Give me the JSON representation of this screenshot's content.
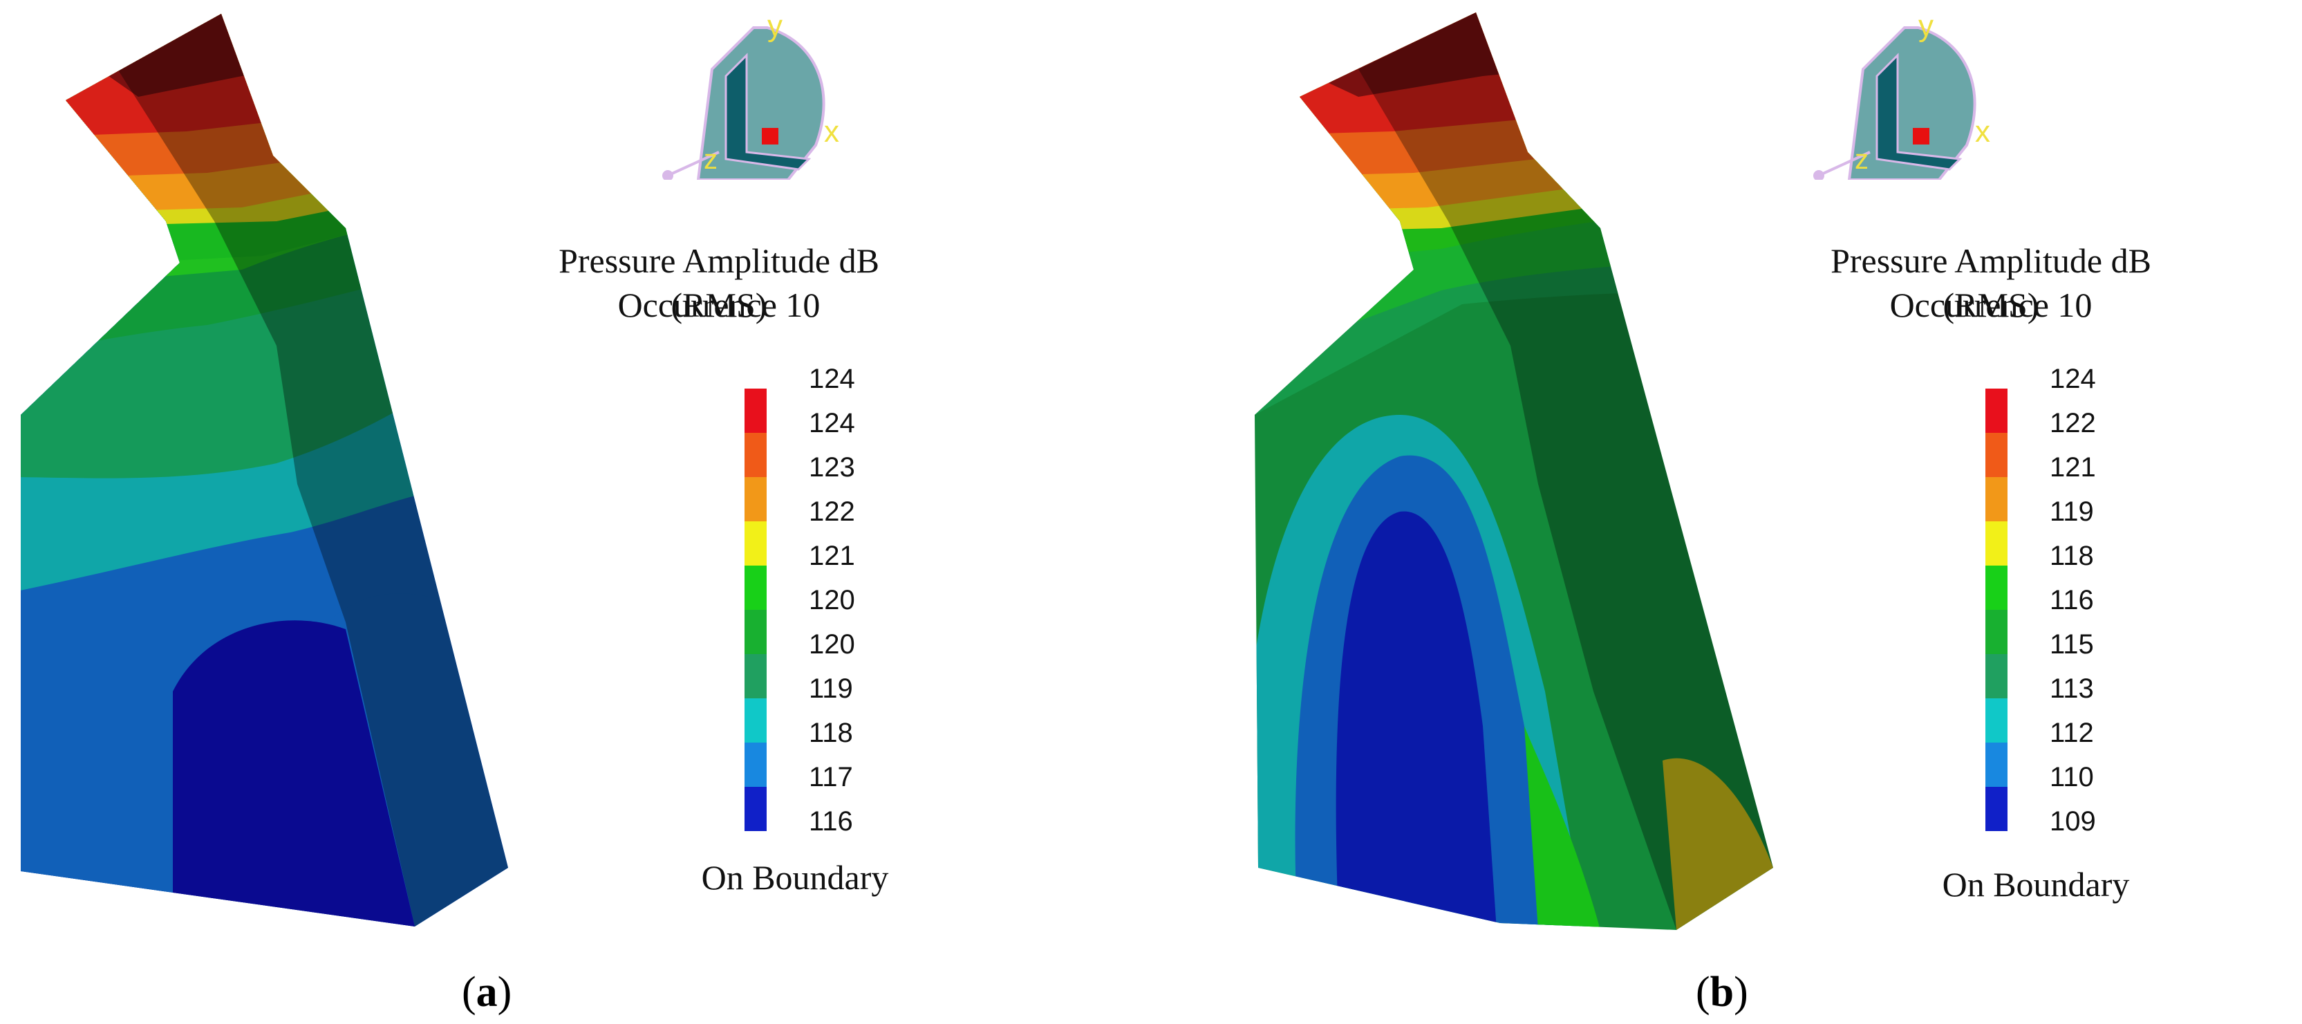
{
  "panels": [
    {
      "id": "a",
      "caption_letter": "a",
      "legend_title": "Pressure Amplitude dB (RMS)",
      "legend_subtitle": "Occurrence 10",
      "legend_footer": "On Boundary",
      "legend_labels": [
        "124",
        "124",
        "123",
        "122",
        "121",
        "120",
        "120",
        "119",
        "118",
        "117",
        "116"
      ],
      "axis_labels": {
        "y": "y",
        "x": "x",
        "z": "z"
      }
    },
    {
      "id": "b",
      "caption_letter": "b",
      "legend_title": "Pressure Amplitude dB (RMS)",
      "legend_subtitle": "Occurrence 10",
      "legend_footer": "On Boundary",
      "legend_labels": [
        "124",
        "122",
        "121",
        "119",
        "118",
        "116",
        "115",
        "113",
        "112",
        "110",
        "109"
      ],
      "axis_labels": {
        "y": "y",
        "x": "x",
        "z": "z"
      }
    }
  ],
  "colors": {
    "scale": [
      "#e8101c",
      "#f05a18",
      "#f29818",
      "#f2f018",
      "#18d018",
      "#18b030",
      "#20a060",
      "#10c8c8",
      "#1888e0",
      "#1020c8"
    ],
    "model_dark_red": "#7a1a10",
    "model_blue": "#1060b8",
    "model_navy": "#0a1a8a",
    "triad_fill": "#6aa6a8",
    "triad_label": "#f0e040"
  }
}
